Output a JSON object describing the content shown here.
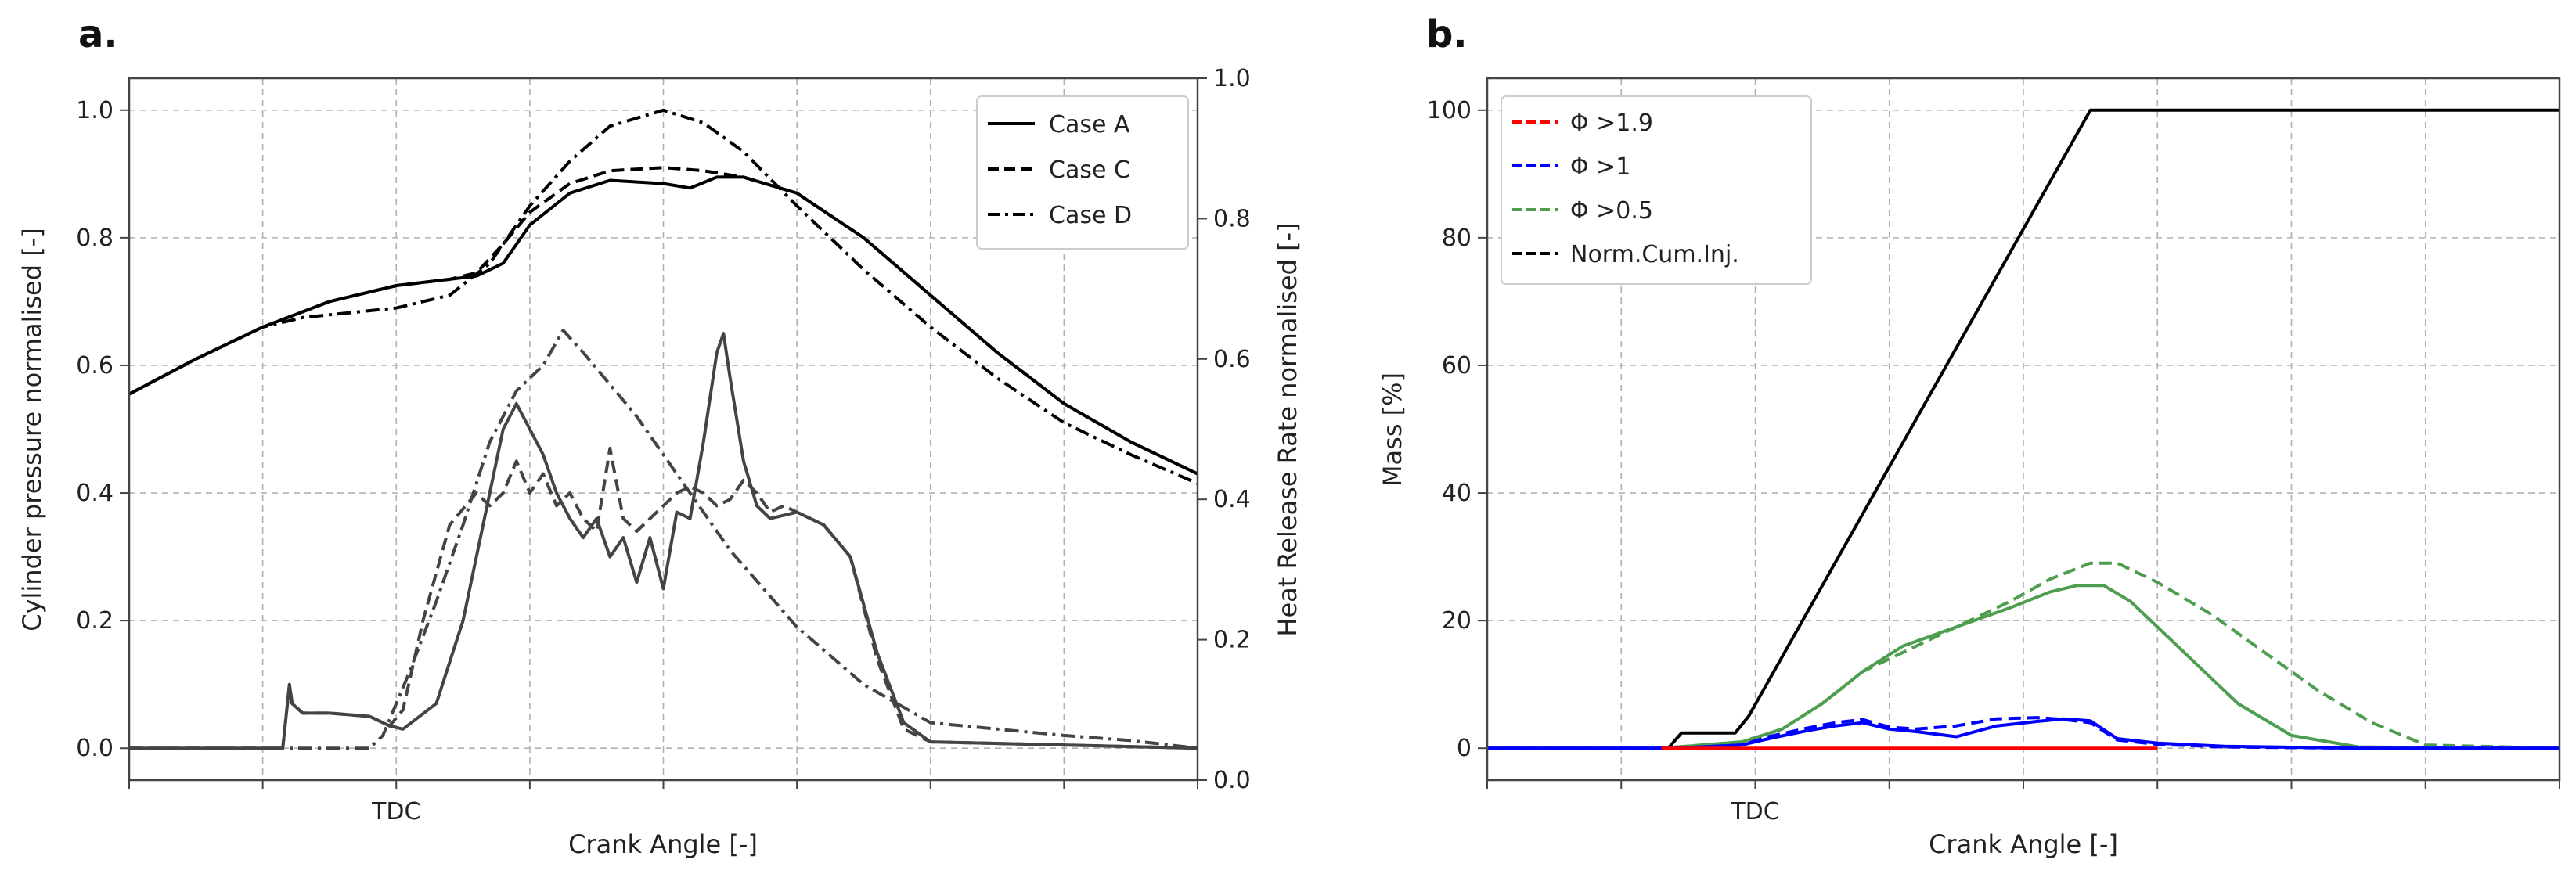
{
  "chart_data": [
    {
      "panel_label": "a.",
      "type": "line",
      "xlabel": "Crank Angle [-]",
      "x_ticks": [
        {
          "x": 2,
          "label": "TDC"
        }
      ],
      "xlim": [
        0,
        8
      ],
      "ylabel_left": "Cylinder pressure normalised [-]",
      "ylabel_right": "Heat Release Rate normalised [-]",
      "ylim_left": [
        -0.05,
        1.05
      ],
      "ylim_right": [
        0.0,
        1.0
      ],
      "yticks_left": [
        "0.0",
        "0.2",
        "0.4",
        "0.6",
        "0.8",
        "1.0"
      ],
      "yticks_right": [
        "0.0",
        "0.2",
        "0.4",
        "0.6",
        "0.8",
        "1.0"
      ],
      "grid": true,
      "legend": {
        "position": "top-right",
        "entries": [
          {
            "name": "Case A",
            "style": "solid"
          },
          {
            "name": "Case C",
            "style": "dashed"
          },
          {
            "name": "Case D",
            "style": "dashdot"
          }
        ]
      },
      "series": [
        {
          "name": "Case A pressure",
          "style": "solid",
          "color": "#000000",
          "x": [
            0,
            0.5,
            1,
            1.5,
            2,
            2.4,
            2.6,
            2.8,
            3,
            3.3,
            3.6,
            4,
            4.2,
            4.4,
            4.6,
            5,
            5.5,
            6,
            6.5,
            7,
            7.5,
            8
          ],
          "y": [
            0.555,
            0.61,
            0.66,
            0.7,
            0.725,
            0.735,
            0.74,
            0.76,
            0.82,
            0.87,
            0.89,
            0.885,
            0.878,
            0.895,
            0.895,
            0.87,
            0.8,
            0.71,
            0.62,
            0.54,
            0.48,
            0.43
          ]
        },
        {
          "name": "Case C pressure",
          "style": "dashed",
          "color": "#000000",
          "x": [
            0,
            0.5,
            1,
            1.5,
            2,
            2.4,
            2.6,
            2.8,
            3,
            3.3,
            3.6,
            4,
            4.3,
            4.6,
            5,
            5.5,
            6,
            6.5,
            7,
            7.5,
            8
          ],
          "y": [
            0.555,
            0.61,
            0.66,
            0.7,
            0.725,
            0.735,
            0.745,
            0.79,
            0.84,
            0.885,
            0.905,
            0.91,
            0.905,
            0.895,
            0.87,
            0.8,
            0.71,
            0.62,
            0.54,
            0.48,
            0.43
          ]
        },
        {
          "name": "Case D pressure",
          "style": "dashdot",
          "color": "#000000",
          "x": [
            0,
            0.5,
            1,
            1.3,
            2,
            2.4,
            2.7,
            3,
            3.3,
            3.6,
            4,
            4.3,
            4.6,
            5,
            5.5,
            6,
            6.5,
            7,
            7.5,
            8
          ],
          "y": [
            0.555,
            0.61,
            0.66,
            0.675,
            0.69,
            0.71,
            0.76,
            0.85,
            0.92,
            0.975,
            1.0,
            0.98,
            0.935,
            0.85,
            0.75,
            0.66,
            0.58,
            0.51,
            0.46,
            0.415
          ]
        },
        {
          "name": "Case A HRR",
          "style": "solid",
          "color": "#444444",
          "x": [
            0,
            1.15,
            1.2,
            1.22,
            1.3,
            1.5,
            1.8,
            1.95,
            2.05,
            2.3,
            2.5,
            2.7,
            2.8,
            2.9,
            3.0,
            3.1,
            3.2,
            3.3,
            3.4,
            3.5,
            3.6,
            3.7,
            3.8,
            3.9,
            4.0,
            4.1,
            4.2,
            4.3,
            4.4,
            4.45,
            4.5,
            4.6,
            4.7,
            4.8,
            5.0,
            5.2,
            5.4,
            5.6,
            5.8,
            6,
            7,
            8
          ],
          "y": [
            0.0,
            0.0,
            0.1,
            0.07,
            0.055,
            0.055,
            0.05,
            0.035,
            0.03,
            0.07,
            0.2,
            0.4,
            0.5,
            0.54,
            0.5,
            0.46,
            0.4,
            0.36,
            0.33,
            0.36,
            0.3,
            0.33,
            0.26,
            0.33,
            0.25,
            0.37,
            0.36,
            0.48,
            0.62,
            0.65,
            0.58,
            0.45,
            0.38,
            0.36,
            0.37,
            0.35,
            0.3,
            0.15,
            0.04,
            0.01,
            0.005,
            0.0
          ]
        },
        {
          "name": "Case C HRR",
          "style": "dashed",
          "color": "#444444",
          "x": [
            0,
            1.15,
            1.2,
            1.22,
            1.3,
            1.5,
            1.8,
            1.95,
            2.05,
            2.2,
            2.4,
            2.6,
            2.7,
            2.8,
            2.9,
            3.0,
            3.1,
            3.2,
            3.3,
            3.4,
            3.5,
            3.6,
            3.7,
            3.8,
            3.9,
            4.0,
            4.1,
            4.2,
            4.3,
            4.4,
            4.5,
            4.6,
            4.7,
            4.8,
            4.9,
            5.0,
            5.2,
            5.4,
            5.6,
            5.8,
            6,
            7,
            8
          ],
          "y": [
            0.0,
            0.0,
            0.1,
            0.07,
            0.055,
            0.055,
            0.05,
            0.035,
            0.06,
            0.2,
            0.35,
            0.4,
            0.38,
            0.4,
            0.45,
            0.4,
            0.43,
            0.38,
            0.4,
            0.36,
            0.34,
            0.47,
            0.36,
            0.34,
            0.36,
            0.38,
            0.4,
            0.41,
            0.4,
            0.38,
            0.39,
            0.42,
            0.4,
            0.37,
            0.38,
            0.37,
            0.35,
            0.3,
            0.14,
            0.03,
            0.01,
            0.005,
            0.0
          ]
        },
        {
          "name": "Case D HRR",
          "style": "dashdot",
          "color": "#444444",
          "x": [
            0,
            1.8,
            1.9,
            2.1,
            2.3,
            2.5,
            2.7,
            2.9,
            3.1,
            3.25,
            3.4,
            3.6,
            3.8,
            4.0,
            4.2,
            4.5,
            5.0,
            5.5,
            6.0,
            6.5,
            7.0,
            7.5,
            8
          ],
          "y": [
            0.0,
            0.0,
            0.02,
            0.12,
            0.23,
            0.35,
            0.48,
            0.56,
            0.6,
            0.655,
            0.62,
            0.57,
            0.52,
            0.46,
            0.4,
            0.31,
            0.19,
            0.1,
            0.04,
            0.03,
            0.02,
            0.012,
            0.0
          ]
        }
      ]
    },
    {
      "panel_label": "b.",
      "type": "line",
      "xlabel": "Crank Angle [-]",
      "x_ticks": [
        {
          "x": 2,
          "label": "TDC"
        }
      ],
      "xlim": [
        0,
        8
      ],
      "ylabel": "Mass [%]",
      "ylim": [
        -5,
        105
      ],
      "yticks": [
        "0",
        "20",
        "40",
        "60",
        "80",
        "100"
      ],
      "grid": true,
      "legend": {
        "position": "top-left",
        "entries": [
          {
            "name": "Φ >1.9",
            "color": "#ff0000",
            "style": "dashed"
          },
          {
            "name": "Φ >1",
            "color": "#0000ff",
            "style": "dashed"
          },
          {
            "name": "Φ >0.5",
            "color": "#4f9e4f",
            "style": "dashed"
          },
          {
            "name": "Norm.Cum.Inj.",
            "color": "#000000",
            "style": "dashed"
          }
        ]
      },
      "series": [
        {
          "name": "Norm.Cum.Inj.",
          "style": "solid",
          "color": "#000000",
          "x": [
            0,
            1.35,
            1.45,
            1.85,
            1.95,
            4.5,
            5.0,
            8
          ],
          "y": [
            0,
            0,
            2.4,
            2.4,
            5,
            100,
            100,
            100
          ]
        },
        {
          "name": "Φ >0.5 solid",
          "style": "solid",
          "color": "#4f9e4f",
          "x": [
            0,
            1.3,
            1.9,
            2.2,
            2.5,
            2.8,
            3.1,
            3.5,
            3.9,
            4.2,
            4.4,
            4.6,
            4.8,
            5.0,
            5.3,
            5.6,
            6.0,
            6.5,
            8
          ],
          "y": [
            0,
            0,
            1,
            3,
            7,
            12,
            16,
            19,
            22,
            24.5,
            25.5,
            25.5,
            23,
            19,
            13,
            7,
            2,
            0.2,
            0
          ]
        },
        {
          "name": "Φ >0.5 dashed",
          "style": "dashed",
          "color": "#4f9e4f",
          "x": [
            0,
            1.3,
            1.9,
            2.2,
            2.5,
            2.8,
            3.1,
            3.5,
            3.9,
            4.2,
            4.5,
            4.7,
            5.0,
            5.4,
            5.8,
            6.2,
            6.6,
            7.0,
            8
          ],
          "y": [
            0,
            0,
            1,
            3,
            7,
            12,
            15,
            19,
            23,
            26.5,
            29,
            29,
            26,
            21,
            15,
            9,
            4,
            0.5,
            0
          ]
        },
        {
          "name": "Φ >1 solid",
          "style": "solid",
          "color": "#0000ff",
          "x": [
            0,
            1.4,
            1.9,
            2.1,
            2.4,
            2.6,
            2.8,
            3.0,
            3.2,
            3.5,
            3.8,
            4.1,
            4.3,
            4.5,
            4.7,
            5.0,
            5.5,
            6.5,
            8
          ],
          "y": [
            0,
            0,
            0.5,
            1.5,
            2.8,
            3.5,
            4.0,
            3.0,
            2.6,
            1.8,
            3.5,
            4.2,
            4.6,
            4.3,
            1.5,
            0.8,
            0.3,
            0,
            0
          ]
        },
        {
          "name": "Φ >1 dashed",
          "style": "dashed",
          "color": "#0000ff",
          "x": [
            0,
            1.4,
            1.9,
            2.1,
            2.4,
            2.6,
            2.8,
            3.0,
            3.2,
            3.5,
            3.8,
            4.1,
            4.3,
            4.5,
            4.7,
            5.0,
            5.5,
            6.5,
            8
          ],
          "y": [
            0,
            0,
            0.5,
            1.8,
            3.2,
            4.0,
            4.5,
            3.3,
            3.0,
            3.5,
            4.6,
            4.8,
            4.5,
            4.0,
            1.3,
            0.6,
            0.2,
            0,
            0
          ]
        },
        {
          "name": "Φ >1.9 solid",
          "style": "solid",
          "color": "#ff0000",
          "x": [
            1.3,
            5.0
          ],
          "y": [
            0,
            0
          ]
        }
      ]
    }
  ]
}
